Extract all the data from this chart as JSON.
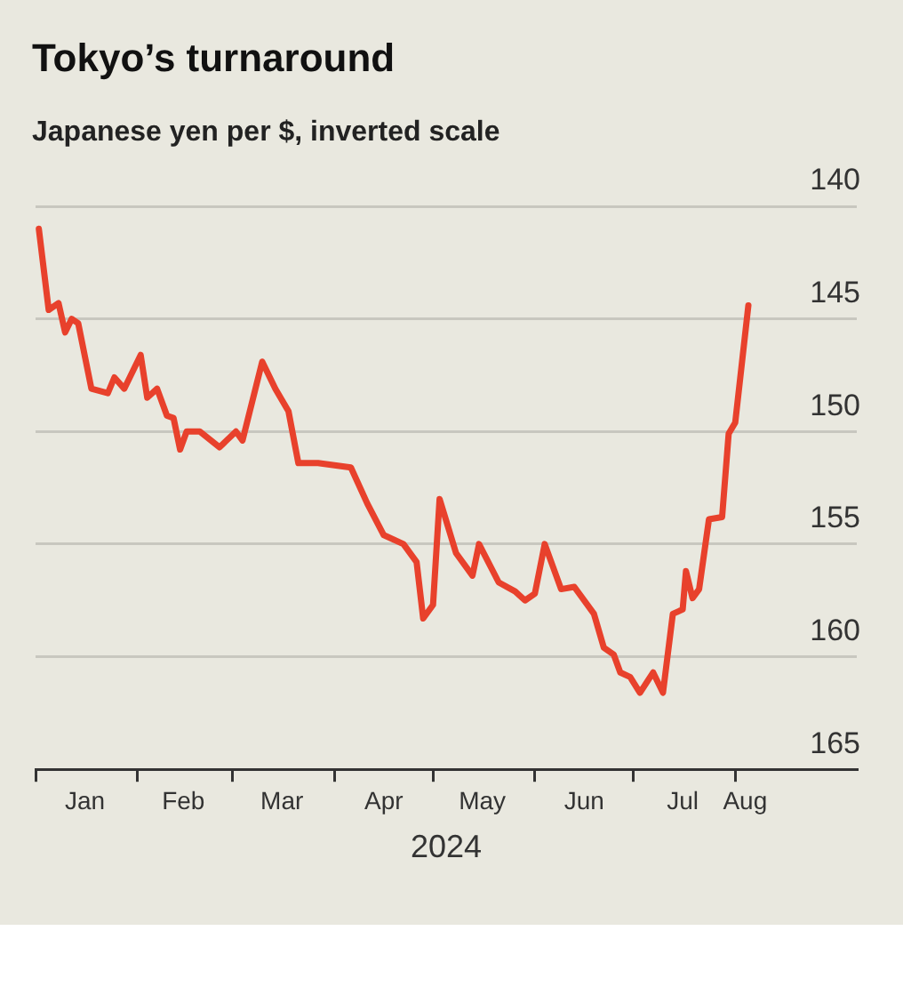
{
  "chart_data": {
    "type": "line",
    "title": "Tokyo’s turnaround",
    "subtitle": "Japanese yen per $, inverted scale",
    "xlabel": "2024",
    "x": [
      "2024-01-02",
      "2024-01-05",
      "2024-01-08",
      "2024-01-10",
      "2024-01-12",
      "2024-01-14",
      "2024-01-18",
      "2024-01-23",
      "2024-01-25",
      "2024-01-28",
      "2024-02-02",
      "2024-02-04",
      "2024-02-07",
      "2024-02-10",
      "2024-02-12",
      "2024-02-14",
      "2024-02-16",
      "2024-02-20",
      "2024-02-26",
      "2024-03-02",
      "2024-03-04",
      "2024-03-10",
      "2024-03-14",
      "2024-03-18",
      "2024-03-21",
      "2024-03-27",
      "2024-04-06",
      "2024-04-11",
      "2024-04-16",
      "2024-04-22",
      "2024-04-26",
      "2024-04-28",
      "2024-05-01",
      "2024-05-03",
      "2024-05-08",
      "2024-05-13",
      "2024-05-15",
      "2024-05-21",
      "2024-05-26",
      "2024-05-29",
      "2024-06-01",
      "2024-06-04",
      "2024-06-09",
      "2024-06-13",
      "2024-06-19",
      "2024-06-22",
      "2024-06-25",
      "2024-06-27",
      "2024-06-30",
      "2024-07-03",
      "2024-07-07",
      "2024-07-10",
      "2024-07-13",
      "2024-07-16",
      "2024-07-17",
      "2024-07-19",
      "2024-07-21",
      "2024-07-24",
      "2024-07-28",
      "2024-07-30",
      "2024-08-01",
      "2024-08-05"
    ],
    "series": [
      {
        "color": "#e8412c",
        "values": [
          141.0,
          144.6,
          144.3,
          145.6,
          145.0,
          145.2,
          148.1,
          148.3,
          147.6,
          148.1,
          146.6,
          148.5,
          148.1,
          149.3,
          149.4,
          150.8,
          150.0,
          150.0,
          150.7,
          150.0,
          150.4,
          146.9,
          148.1,
          149.1,
          151.4,
          151.4,
          151.6,
          153.2,
          154.6,
          155.0,
          155.8,
          158.3,
          157.7,
          153.0,
          155.4,
          156.4,
          155.0,
          156.7,
          157.1,
          157.5,
          157.2,
          155.0,
          157.0,
          156.9,
          158.1,
          159.6,
          159.9,
          160.7,
          160.9,
          161.6,
          160.7,
          161.6,
          158.1,
          157.9,
          156.2,
          157.4,
          157.0,
          153.9,
          153.8,
          150.1,
          149.6,
          144.4
        ]
      }
    ],
    "ylim": [
      165,
      140
    ],
    "yticks": [
      140,
      145,
      150,
      155,
      160,
      165
    ],
    "xlim": [
      "2024-01-01",
      "2024-09-07"
    ],
    "xticks": [
      {
        "value": "2024-01-01",
        "label": null
      },
      {
        "value": "2024-01-16",
        "label": "Jan"
      },
      {
        "value": "2024-02-01",
        "label": null
      },
      {
        "value": "2024-02-15",
        "label": "Feb"
      },
      {
        "value": "2024-03-01",
        "label": null
      },
      {
        "value": "2024-03-16",
        "label": "Mar"
      },
      {
        "value": "2024-04-01",
        "label": null
      },
      {
        "value": "2024-04-16",
        "label": "Apr"
      },
      {
        "value": "2024-05-01",
        "label": null
      },
      {
        "value": "2024-05-16",
        "label": "May"
      },
      {
        "value": "2024-06-01",
        "label": null
      },
      {
        "value": "2024-06-16",
        "label": "Jun"
      },
      {
        "value": "2024-07-01",
        "label": null
      },
      {
        "value": "2024-07-16",
        "label": "Jul"
      },
      {
        "value": "2024-08-01",
        "label": null
      },
      {
        "value": "2024-08-04",
        "label": "Aug"
      }
    ],
    "grid": "y",
    "legend": false,
    "marker": "none",
    "line_style": "solid"
  }
}
